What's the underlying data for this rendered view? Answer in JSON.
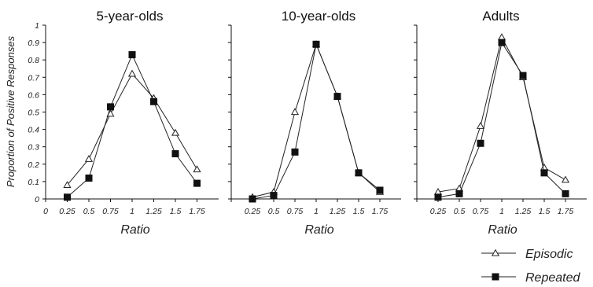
{
  "chart_data": {
    "type": "line",
    "ylabel": "Proportion of Positive Responses",
    "ylim": [
      0,
      1
    ],
    "yticks": [
      "0",
      "0.1",
      "0.2",
      "0.3",
      "0.4",
      "0.5",
      "0.6",
      "0.7",
      "0.8",
      "0.9",
      "1"
    ],
    "legend": {
      "position": "bottom-right",
      "entries": [
        "Episodic",
        "Repeated"
      ]
    },
    "panels": [
      {
        "title": "5-year-olds",
        "xlabel": "Ratio",
        "x": [
          0.25,
          0.5,
          0.75,
          1,
          1.25,
          1.5,
          1.75
        ],
        "xtick_labels": [
          "0",
          "0.25",
          "0.5",
          "0.75",
          "1",
          "1.25",
          "1.5",
          "1.75"
        ],
        "series": [
          {
            "name": "Episodic",
            "values": [
              0.08,
              0.23,
              0.49,
              0.72,
              0.58,
              0.38,
              0.17
            ]
          },
          {
            "name": "Repeated",
            "values": [
              0.01,
              0.12,
              0.53,
              0.83,
              0.56,
              0.26,
              0.09
            ]
          }
        ]
      },
      {
        "title": "10-year-olds",
        "xlabel": "Ratio",
        "x": [
          0.25,
          0.5,
          0.75,
          1,
          1.25,
          1.5,
          1.75
        ],
        "xtick_labels": [
          "0.25",
          "0.5",
          "0.75",
          "1",
          "1.25",
          "1.5",
          "1.75"
        ],
        "series": [
          {
            "name": "Episodic",
            "values": [
              0.01,
              0.04,
              0.5,
              0.89,
              0.59,
              0.15,
              0.04
            ]
          },
          {
            "name": "Repeated",
            "values": [
              0.0,
              0.02,
              0.27,
              0.89,
              0.59,
              0.15,
              0.05
            ]
          }
        ]
      },
      {
        "title": "Adults",
        "xlabel": "Ratio",
        "x": [
          0.25,
          0.5,
          0.75,
          1,
          1.25,
          1.5,
          1.75
        ],
        "xtick_labels": [
          "0.25",
          "0.5",
          "0.75",
          "1",
          "1.25",
          "1.5",
          "1.75"
        ],
        "series": [
          {
            "name": "Episodic",
            "values": [
              0.04,
              0.06,
              0.42,
              0.93,
              0.7,
              0.18,
              0.11
            ]
          },
          {
            "name": "Repeated",
            "values": [
              0.01,
              0.03,
              0.32,
              0.9,
              0.71,
              0.15,
              0.03
            ]
          }
        ]
      }
    ]
  }
}
